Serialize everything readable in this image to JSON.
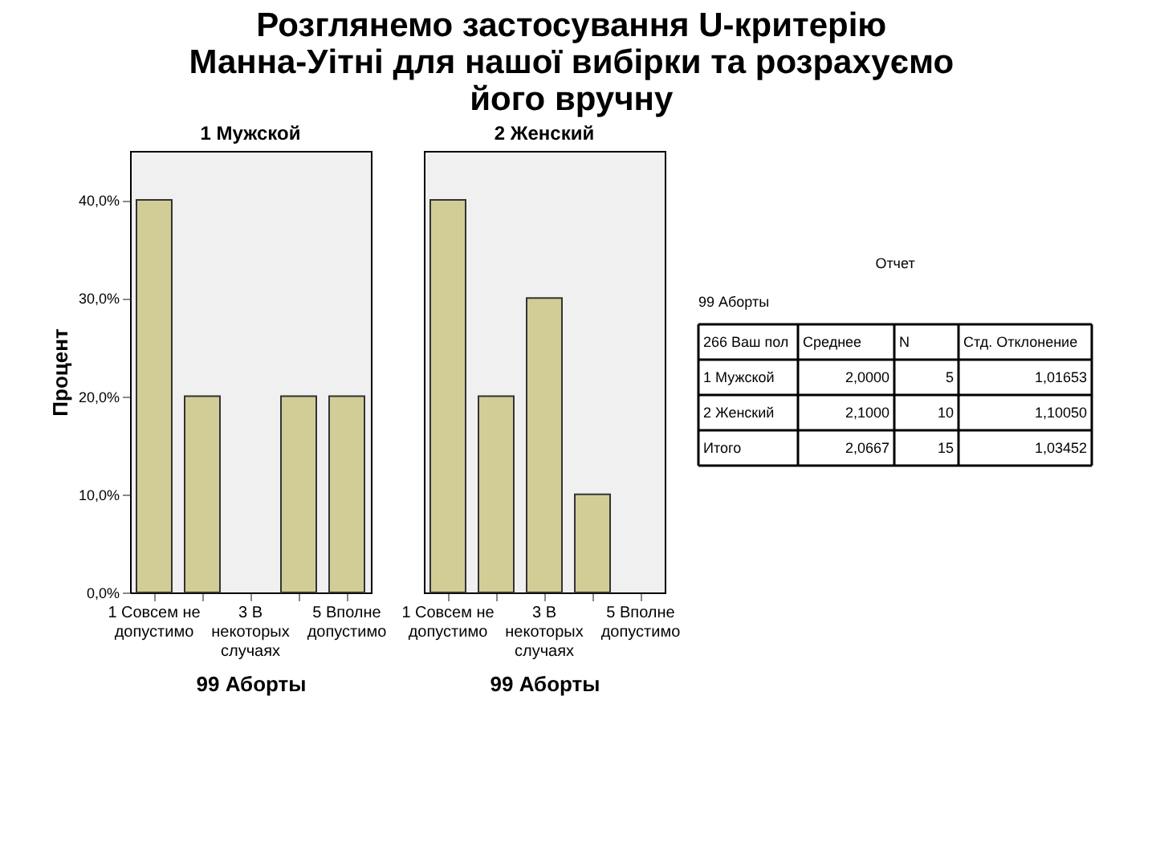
{
  "chart_data": [
    {
      "type": "bar",
      "title": "Розглянемо застосування U-критерію Манна-Уітні для нашої вибірки та розрахуємо його вручну",
      "subtitle": "1 Мужской",
      "xlabel": "99 Аборты",
      "ylabel": "Процент",
      "categories": [
        "1 Совсем не допустимо",
        null,
        "3 В некоторых случаях",
        null,
        "5 Вполне допустимо"
      ],
      "values": [
        40,
        20,
        0,
        20,
        20
      ],
      "color": "#d2cd96",
      "ylim": [
        0,
        45
      ],
      "yticks": [
        {
          "value": 0,
          "label": "0,0%"
        },
        {
          "value": 10,
          "label": "10,0%"
        },
        {
          "value": 20,
          "label": "20,0%"
        },
        {
          "value": 30,
          "label": "30,0%"
        },
        {
          "value": 40,
          "label": "40,0%"
        }
      ],
      "grid": false
    },
    {
      "type": "bar",
      "subtitle": "2 Женский",
      "xlabel": "99 Аборты",
      "categories": [
        "1 Совсем не допустимо",
        null,
        "3 В некоторых случаях",
        null,
        "5 Вполне допустимо"
      ],
      "values": [
        40,
        20,
        30,
        10,
        0
      ],
      "color": "#d2cd96",
      "ylim": [
        0,
        45
      ],
      "tick_labels": "x",
      "grid": false
    },
    {
      "type": "other",
      "title": "Отчет",
      "subtitle": "99 Аборты",
      "annotations": [
        "266 Ваш пол",
        "Среднее",
        "N",
        "Стд. Отклонение",
        "1 Мужской",
        "2,0000",
        "5",
        "1,01653",
        "2 Женский",
        "2,1000",
        "10",
        "1,10050",
        "Итого",
        "2,0667",
        "15",
        "1,03452"
      ]
    }
  ]
}
